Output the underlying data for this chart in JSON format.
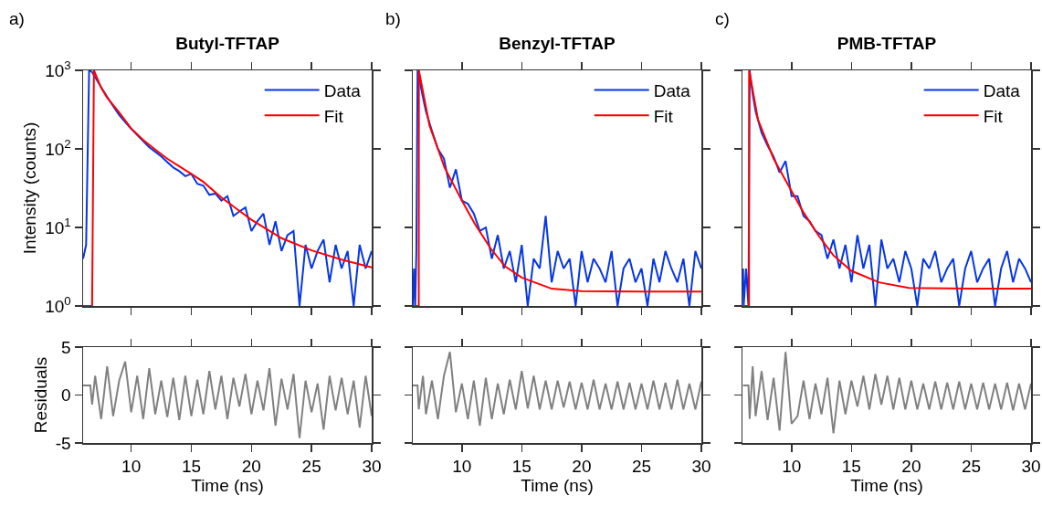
{
  "chart_data": [
    {
      "type": "line",
      "title": "Butyl-TFTAP",
      "ylabel": "Intensity (counts)",
      "annotations": [
        "a)"
      ],
      "log": true,
      "legend": "top right",
      "tick_labels": "y",
      "xlim": [
        6,
        30
      ],
      "xticks": [
        10,
        15,
        20,
        25,
        30
      ],
      "ylim": [
        1,
        1000
      ],
      "yticks": [
        {
          "value": 1,
          "label": "10$^{0}$"
        },
        {
          "value": 10,
          "label": "10$^{1}$"
        },
        {
          "value": 100,
          "label": "10$^{2}$"
        },
        {
          "value": 1000,
          "label": "10$^{3}$"
        }
      ],
      "series": [
        {
          "name": "Data",
          "color": "#0636e6",
          "x": [
            6,
            6.25,
            6.5,
            6.75,
            7,
            7.5,
            8,
            8.5,
            9,
            9.5,
            10,
            10.5,
            11,
            11.5,
            12,
            12.5,
            13,
            13.5,
            14,
            14.5,
            15,
            15.5,
            16,
            16.5,
            17,
            17.5,
            18,
            18.5,
            19,
            19.5,
            20,
            20.5,
            21,
            21.5,
            22,
            22.5,
            23,
            23.5,
            24,
            24.5,
            25,
            25.5,
            26,
            26.5,
            27,
            27.5,
            28,
            28.5,
            29,
            29.5,
            30
          ],
          "values": [
            4,
            6,
            1000,
            950,
            820,
            610,
            460,
            350,
            270,
            220,
            180,
            150,
            125,
            105,
            92,
            80,
            68,
            58,
            52,
            45,
            48,
            36,
            34,
            26,
            27,
            22,
            25,
            14,
            16,
            18,
            9,
            12,
            15,
            6,
            12,
            5,
            8,
            9,
            1,
            6,
            3,
            5,
            7,
            2,
            6,
            3,
            5,
            1,
            6,
            3,
            5
          ]
        },
        {
          "name": "Fit",
          "color": "#ff0000",
          "x": [
            6,
            6.75,
            6.9,
            7.5,
            8,
            9,
            10,
            11,
            12,
            13,
            14,
            15,
            16,
            17.5,
            20,
            22.5,
            25,
            27.5,
            30
          ],
          "values": [
            1,
            1,
            1000,
            600,
            450,
            290,
            182,
            130,
            98,
            75,
            60,
            48,
            38,
            24,
            12.5,
            7.3,
            5.1,
            3.9,
            3.1
          ]
        }
      ]
    },
    {
      "type": "line",
      "title": "Benzyl-TFTAP",
      "annotations": [
        "b)"
      ],
      "log": true,
      "legend": "top right",
      "tick_labels": false,
      "xlim": [
        5.9,
        30
      ],
      "xticks": [
        10,
        15,
        20,
        25,
        30
      ],
      "ylim": [
        1,
        1000
      ],
      "yticks": [
        {
          "value": 1,
          "label": null
        },
        {
          "value": 10,
          "label": null
        },
        {
          "value": 100,
          "label": null
        },
        {
          "value": 1000,
          "label": null
        }
      ],
      "series": [
        {
          "name": "Data",
          "color": "#0636e6",
          "x": [
            5.9,
            6,
            6.1,
            6.2,
            6.3,
            6.5,
            6.75,
            7,
            7.5,
            8,
            8.5,
            9,
            9.5,
            10,
            10.5,
            11,
            11.5,
            12,
            12.5,
            13,
            13.5,
            14,
            14.5,
            15,
            15.5,
            16,
            16.5,
            17,
            17.5,
            18,
            18.5,
            19,
            19.5,
            20,
            20.5,
            21,
            21.5,
            22,
            22.5,
            23,
            23.5,
            24,
            24.5,
            25,
            25.5,
            26,
            26.5,
            27,
            27.5,
            28,
            28.5,
            29,
            29.5,
            30
          ],
          "values": [
            1,
            3,
            1,
            5,
            1000,
            700,
            450,
            300,
            170,
            100,
            75,
            32,
            55,
            22,
            20,
            15,
            9,
            10,
            4,
            8,
            3,
            5,
            2,
            6,
            1,
            4,
            3,
            14,
            2,
            5,
            3,
            4,
            1,
            5,
            2,
            4,
            3,
            2,
            5,
            1,
            3,
            4,
            2,
            3,
            1,
            4,
            2,
            5,
            3,
            2,
            4,
            1,
            5,
            3
          ]
        },
        {
          "name": "Fit",
          "color": "#ff0000",
          "x": [
            5.9,
            6.4,
            6.41,
            7,
            7.3,
            8,
            8.55,
            10,
            11.1,
            12.4,
            13.6,
            15,
            17.5,
            20,
            25,
            30
          ],
          "values": [
            1,
            1,
            1000,
            340,
            197,
            100,
            58,
            22,
            11,
            5.4,
            3.2,
            2.3,
            1.66,
            1.55,
            1.52,
            1.52
          ]
        }
      ]
    },
    {
      "type": "line",
      "title": "PMB-TFTAP",
      "annotations": [
        "c)"
      ],
      "log": true,
      "legend": "top right",
      "tick_labels": false,
      "xlim": [
        5.9,
        30
      ],
      "xticks": [
        10,
        15,
        20,
        25,
        30
      ],
      "ylim": [
        1,
        1000
      ],
      "yticks": [
        {
          "value": 1,
          "label": null
        },
        {
          "value": 10,
          "label": null
        },
        {
          "value": 100,
          "label": null
        },
        {
          "value": 1000,
          "label": null
        }
      ],
      "series": [
        {
          "name": "Data",
          "color": "#0636e6",
          "x": [
            5.95,
            6,
            6.2,
            6.4,
            6.5,
            6.75,
            7,
            7.5,
            8,
            8.5,
            9,
            9.5,
            10,
            10.5,
            11,
            11.5,
            12,
            12.5,
            13,
            13.5,
            14,
            14.5,
            15,
            15.5,
            16,
            16.5,
            17,
            17.5,
            18,
            18.5,
            19,
            19.5,
            20,
            20.5,
            21,
            21.5,
            22,
            22.5,
            23,
            23.5,
            24,
            24.5,
            25,
            25.5,
            26,
            26.5,
            27,
            27.5,
            28,
            28.5,
            29,
            29.5,
            30
          ],
          "values": [
            3,
            1,
            3,
            1,
            1000,
            500,
            300,
            160,
            110,
            80,
            50,
            70,
            25,
            25,
            14,
            12,
            9,
            8,
            4,
            7,
            3,
            6,
            2,
            8,
            3,
            6,
            1,
            7,
            3,
            4,
            2,
            5,
            3,
            1,
            4,
            3,
            5,
            2,
            3,
            4,
            1,
            3,
            5,
            2,
            3,
            4,
            1,
            3,
            5,
            2,
            4,
            3,
            2
          ]
        },
        {
          "name": "Fit",
          "color": "#ff0000",
          "x": [
            5.95,
            6.45,
            6.46,
            7.2,
            8.5,
            10,
            11,
            12.3,
            13.5,
            15,
            17.3,
            19.8,
            25,
            30
          ],
          "values": [
            1,
            1,
            1000,
            235,
            75,
            29,
            15.5,
            7.7,
            4.4,
            2.8,
            2.0,
            1.7,
            1.66,
            1.66
          ]
        }
      ]
    },
    {
      "type": "line",
      "xlabel": "Time (ns)",
      "ylabel": "Residuals",
      "xlim": [
        6,
        30
      ],
      "xticks": [
        10,
        15,
        20,
        25,
        30
      ],
      "ylim": [
        -5,
        5
      ],
      "yticks": [
        -5,
        0,
        5
      ],
      "series": [
        {
          "color": "#808080",
          "x": [
            6,
            6.6,
            6.75,
            7,
            7.5,
            8,
            8.5,
            9,
            9.5,
            10,
            10.5,
            11,
            11.5,
            12,
            12.5,
            13,
            13.5,
            14,
            14.5,
            15,
            15.5,
            16,
            16.5,
            17,
            17.5,
            18,
            18.5,
            19,
            19.5,
            20,
            20.5,
            21,
            21.5,
            22,
            22.5,
            23,
            23.5,
            24,
            24.5,
            25,
            25.5,
            26,
            26.5,
            27,
            27.5,
            28,
            28.5,
            29,
            29.5,
            30
          ],
          "values": [
            1,
            1,
            -1,
            2,
            -2.5,
            3,
            -2.2,
            1.5,
            3.5,
            -1.8,
            2,
            -2.5,
            2.8,
            -2,
            1.5,
            -2.3,
            1.8,
            -2.6,
            2,
            -2.2,
            1.6,
            -2,
            2.5,
            -1.5,
            2,
            -2.5,
            1.8,
            -1.2,
            2.2,
            -2,
            1.5,
            -1.6,
            2.8,
            -3.2,
            1.7,
            -1.5,
            2.2,
            -4.5,
            1.5,
            -1.8,
            1.2,
            -3.6,
            2,
            -1.6,
            1.8,
            -2,
            1.5,
            -3.4,
            2,
            -2.2
          ]
        }
      ]
    },
    {
      "type": "line",
      "xlabel": "Time (ns)",
      "tick_labels": "x",
      "xlim": [
        5.9,
        30
      ],
      "xticks": [
        10,
        15,
        20,
        25,
        30
      ],
      "ylim": [
        -5,
        5
      ],
      "yticks": [
        {
          "value": -5,
          "label": null
        },
        {
          "value": 0,
          "label": null
        },
        {
          "value": 5,
          "label": null
        }
      ],
      "series": [
        {
          "color": "#808080",
          "x": [
            5.9,
            6.3,
            6.4,
            6.75,
            7,
            7.5,
            8,
            8.5,
            9,
            9.5,
            10,
            10.5,
            11,
            11.5,
            12,
            12.5,
            13,
            13.5,
            14,
            14.5,
            15,
            15.5,
            16,
            16.5,
            17,
            17.5,
            18,
            18.5,
            19,
            19.5,
            20,
            20.5,
            21,
            21.5,
            22,
            22.5,
            23,
            23.5,
            24,
            24.5,
            25,
            25.5,
            26,
            26.5,
            27,
            27.5,
            28,
            28.5,
            29,
            29.5,
            30
          ],
          "values": [
            1,
            1,
            -1.5,
            2,
            -2,
            1.5,
            -2.5,
            2,
            4.5,
            -1.8,
            1.2,
            -2.5,
            1.5,
            -3.2,
            1.8,
            -2.5,
            1.2,
            -2,
            1.6,
            -1.5,
            2.5,
            -1.4,
            2,
            -1.5,
            1.5,
            -1.5,
            1.5,
            -1.3,
            1.4,
            -1.5,
            1.3,
            -1.5,
            1.6,
            -1.5,
            1.2,
            -1.5,
            1.4,
            -1.5,
            1.3,
            -1.5,
            1.2,
            -1.5,
            1.5,
            -1.5,
            1.3,
            -1.5,
            1.6,
            -1.5,
            1.2,
            -1.5,
            1.4
          ]
        }
      ]
    },
    {
      "type": "line",
      "xlabel": "Time (ns)",
      "tick_labels": "x",
      "xlim": [
        5.9,
        30
      ],
      "xticks": [
        10,
        15,
        20,
        25,
        30
      ],
      "ylim": [
        -5,
        5
      ],
      "yticks": [
        {
          "value": -5,
          "label": null
        },
        {
          "value": 0,
          "label": null
        },
        {
          "value": 5,
          "label": null
        }
      ],
      "series": [
        {
          "color": "#808080",
          "x": [
            5.95,
            6.4,
            6.5,
            6.75,
            7,
            7.5,
            8,
            8.5,
            9,
            9.5,
            10,
            10.5,
            11,
            11.5,
            12,
            12.5,
            13,
            13.5,
            14,
            14.5,
            15,
            15.5,
            16,
            16.5,
            17,
            17.5,
            18,
            18.5,
            19,
            19.5,
            20,
            20.5,
            21,
            21.5,
            22,
            22.5,
            23,
            23.5,
            24,
            24.5,
            25,
            25.5,
            26,
            26.5,
            27,
            27.5,
            28,
            28.5,
            29,
            29.5,
            30
          ],
          "values": [
            1,
            1,
            -2.5,
            3,
            -2.2,
            2.5,
            -2.6,
            1.8,
            -3.7,
            4.5,
            -3,
            -2.2,
            1.5,
            -2.5,
            1.2,
            -2,
            1.8,
            -4,
            1.5,
            -2,
            1.5,
            -1.2,
            2,
            -1.5,
            2.2,
            -1,
            2,
            -1.5,
            1.8,
            -1.5,
            1.5,
            -1.5,
            1.2,
            -1.5,
            1.4,
            -1.5,
            1.3,
            -1.5,
            1.4,
            -1.5,
            1.2,
            -1.5,
            1.3,
            -1.5,
            1.2,
            -1.5,
            1.3,
            -1.6,
            1.2,
            -1.5,
            1.2
          ]
        }
      ]
    }
  ]
}
